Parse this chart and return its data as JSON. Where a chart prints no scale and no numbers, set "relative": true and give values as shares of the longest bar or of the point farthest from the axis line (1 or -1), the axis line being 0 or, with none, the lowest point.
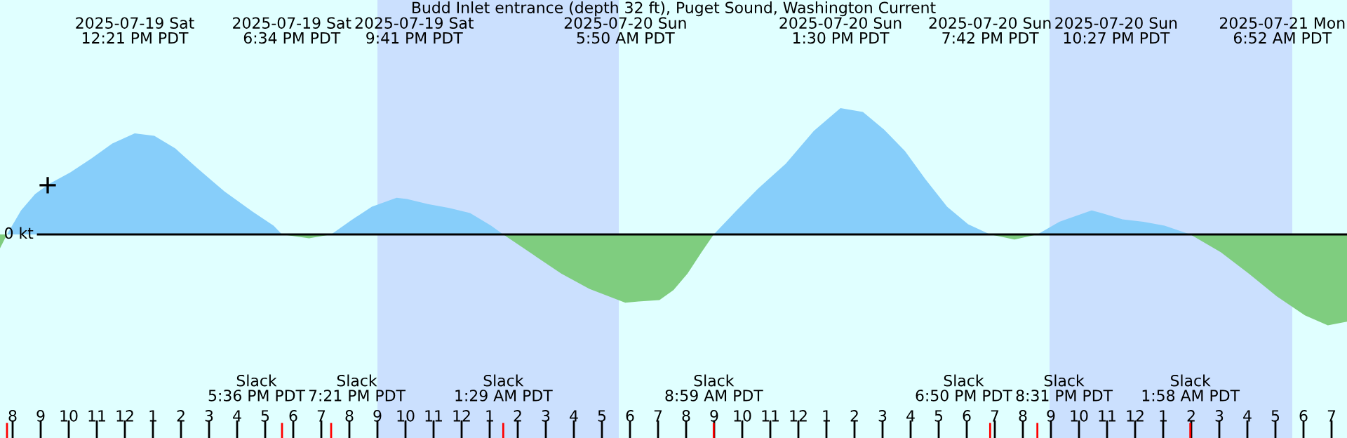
{
  "chart_data": {
    "type": "area",
    "title": "Budd Inlet entrance (depth 32 ft), Puget Sound, Washington Current",
    "relative": true,
    "x": [
      "2025-07-19T07:33",
      "2025-07-19T07:48",
      "2025-07-19T08:18",
      "2025-07-19T08:48",
      "2025-07-19T09:18",
      "2025-07-19T10:03",
      "2025-07-19T10:48",
      "2025-07-19T11:33",
      "2025-07-19T12:21",
      "2025-07-19T13:03",
      "2025-07-19T13:48",
      "2025-07-19T14:33",
      "2025-07-19T15:33",
      "2025-07-19T16:33",
      "2025-07-19T17:18",
      "2025-07-19T17:36",
      "2025-07-19T18:34",
      "2025-07-19T19:21",
      "2025-07-19T20:03",
      "2025-07-19T20:48",
      "2025-07-19T21:41",
      "2025-07-19T22:03",
      "2025-07-19T22:48",
      "2025-07-19T23:33",
      "2025-07-20T00:18",
      "2025-07-20T01:03",
      "2025-07-20T01:29",
      "2025-07-20T02:33",
      "2025-07-20T03:33",
      "2025-07-20T04:33",
      "2025-07-20T05:50",
      "2025-07-20T06:18",
      "2025-07-20T07:03",
      "2025-07-20T07:33",
      "2025-07-20T08:03",
      "2025-07-20T08:33",
      "2025-07-20T08:59",
      "2025-07-20T09:48",
      "2025-07-20T10:33",
      "2025-07-20T11:33",
      "2025-07-20T12:33",
      "2025-07-20T13:30",
      "2025-07-20T14:18",
      "2025-07-20T15:03",
      "2025-07-20T15:48",
      "2025-07-20T16:33",
      "2025-07-20T17:18",
      "2025-07-20T18:03",
      "2025-07-20T18:50",
      "2025-07-20T19:42",
      "2025-07-20T20:31",
      "2025-07-20T21:18",
      "2025-07-20T22:27",
      "2025-07-20T22:48",
      "2025-07-20T23:33",
      "2025-07-21T00:18",
      "2025-07-21T01:03",
      "2025-07-21T01:58",
      "2025-07-21T03:03",
      "2025-07-21T04:03",
      "2025-07-21T05:03",
      "2025-07-21T06:03",
      "2025-07-21T06:52",
      "2025-07-21T07:33"
    ],
    "series": [
      {
        "color": "#87cefa",
        "values": [
          null,
          0,
          0.19,
          0.32,
          0.4,
          0.49,
          0.6,
          0.72,
          0.8,
          0.78,
          0.68,
          0.53,
          0.34,
          0.18,
          0.07,
          0,
          null,
          0,
          0.11,
          0.22,
          0.29,
          0.28,
          0.24,
          0.21,
          0.17,
          0.07,
          0,
          null,
          null,
          null,
          null,
          null,
          null,
          null,
          null,
          null,
          0,
          0.19,
          0.36,
          0.56,
          0.82,
          1.0,
          0.97,
          0.83,
          0.66,
          0.43,
          0.22,
          0.08,
          0,
          null,
          0,
          0.1,
          0.19,
          0.17,
          0.12,
          0.1,
          0.07,
          0,
          null,
          null,
          null,
          null,
          null,
          null
        ]
      },
      {
        "color": "#7fcd7f",
        "values": [
          -0.11,
          0,
          null,
          null,
          null,
          null,
          null,
          null,
          null,
          null,
          null,
          null,
          null,
          null,
          null,
          0,
          -0.03,
          0,
          null,
          null,
          null,
          null,
          null,
          null,
          null,
          null,
          0,
          -0.16,
          -0.31,
          -0.43,
          -0.54,
          -0.53,
          -0.52,
          -0.44,
          -0.31,
          -0.14,
          0,
          null,
          null,
          null,
          null,
          null,
          null,
          null,
          null,
          null,
          null,
          null,
          0,
          -0.04,
          0,
          null,
          null,
          null,
          null,
          null,
          null,
          0,
          -0.14,
          -0.31,
          -0.49,
          -0.64,
          -0.72,
          -0.69
        ]
      },
      {
        "type": "scatter",
        "color": "#000000",
        "marker": "cross",
        "x": [
          "2025-07-19T09:15"
        ],
        "values": [
          0.39
        ]
      }
    ],
    "xlim": [
      "2025-07-19T07:33",
      "2025-07-21T07:33"
    ],
    "xticks": [
      {
        "value": "2025-07-19T08:00",
        "label": "8"
      },
      {
        "value": "2025-07-19T09:00",
        "label": "9"
      },
      {
        "value": "2025-07-19T10:00",
        "label": "10"
      },
      {
        "value": "2025-07-19T11:00",
        "label": "11"
      },
      {
        "value": "2025-07-19T12:00",
        "label": "12"
      },
      {
        "value": "2025-07-19T13:00",
        "label": "1"
      },
      {
        "value": "2025-07-19T14:00",
        "label": "2"
      },
      {
        "value": "2025-07-19T15:00",
        "label": "3"
      },
      {
        "value": "2025-07-19T16:00",
        "label": "4"
      },
      {
        "value": "2025-07-19T17:00",
        "label": "5"
      },
      {
        "value": "2025-07-19T18:00",
        "label": "6"
      },
      {
        "value": "2025-07-19T19:00",
        "label": "7"
      },
      {
        "value": "2025-07-19T20:00",
        "label": "8"
      },
      {
        "value": "2025-07-19T21:00",
        "label": "9"
      },
      {
        "value": "2025-07-19T22:00",
        "label": "10"
      },
      {
        "value": "2025-07-19T23:00",
        "label": "11"
      },
      {
        "value": "2025-07-20T00:00",
        "label": "12"
      },
      {
        "value": "2025-07-20T01:00",
        "label": "1"
      },
      {
        "value": "2025-07-20T02:00",
        "label": "2"
      },
      {
        "value": "2025-07-20T03:00",
        "label": "3"
      },
      {
        "value": "2025-07-20T04:00",
        "label": "4"
      },
      {
        "value": "2025-07-20T05:00",
        "label": "5"
      },
      {
        "value": "2025-07-20T06:00",
        "label": "6"
      },
      {
        "value": "2025-07-20T07:00",
        "label": "7"
      },
      {
        "value": "2025-07-20T08:00",
        "label": "8"
      },
      {
        "value": "2025-07-20T09:00",
        "label": "9"
      },
      {
        "value": "2025-07-20T10:00",
        "label": "10"
      },
      {
        "value": "2025-07-20T11:00",
        "label": "11"
      },
      {
        "value": "2025-07-20T12:00",
        "label": "12"
      },
      {
        "value": "2025-07-20T13:00",
        "label": "1"
      },
      {
        "value": "2025-07-20T14:00",
        "label": "2"
      },
      {
        "value": "2025-07-20T15:00",
        "label": "3"
      },
      {
        "value": "2025-07-20T16:00",
        "label": "4"
      },
      {
        "value": "2025-07-20T17:00",
        "label": "5"
      },
      {
        "value": "2025-07-20T18:00",
        "label": "6"
      },
      {
        "value": "2025-07-20T19:00",
        "label": "7"
      },
      {
        "value": "2025-07-20T20:00",
        "label": "8"
      },
      {
        "value": "2025-07-20T21:00",
        "label": "9"
      },
      {
        "value": "2025-07-20T22:00",
        "label": "10"
      },
      {
        "value": "2025-07-20T23:00",
        "label": "11"
      },
      {
        "value": "2025-07-21T00:00",
        "label": "12"
      },
      {
        "value": "2025-07-21T01:00",
        "label": "1"
      },
      {
        "value": "2025-07-21T02:00",
        "label": "2"
      },
      {
        "value": "2025-07-21T03:00",
        "label": "3"
      },
      {
        "value": "2025-07-21T04:00",
        "label": "4"
      },
      {
        "value": "2025-07-21T05:00",
        "label": "5"
      },
      {
        "value": "2025-07-21T06:00",
        "label": "6"
      },
      {
        "value": "2025-07-21T07:00",
        "label": "7"
      }
    ],
    "ref_lines": [
      {
        "axis": "y",
        "value": 0,
        "label": "0 kt",
        "color": "#000000"
      }
    ],
    "bands": [
      {
        "axis": "x",
        "from": "2025-07-19T21:00",
        "to": "2025-07-20T05:36",
        "color": "#cbe0fe"
      },
      {
        "axis": "x",
        "from": "2025-07-20T20:57",
        "to": "2025-07-21T05:36",
        "color": "#cbe0fe"
      }
    ],
    "annotations": [
      "2025-07-19 Sat\n12:21 PM PDT",
      "2025-07-19 Sat\n6:34 PM PDT",
      "2025-07-19 Sat\n9:41 PM PDT",
      "2025-07-20 Sun\n5:50 AM PDT",
      "2025-07-20 Sun\n1:30 PM PDT",
      "2025-07-20 Sun\n7:42 PM PDT",
      "2025-07-20 Sun\n10:27 PM PDT",
      "2025-07-21 Mon\n6:52 AM PDT",
      "Slack\n5:36 PM PDT",
      "Slack\n7:21 PM PDT",
      "Slack\n1:29 AM PDT",
      "Slack\n8:59 AM PDT",
      "Slack\n6:50 PM PDT",
      "Slack\n8:31 PM PDT",
      "Slack\n1:58 AM PDT"
    ]
  }
}
